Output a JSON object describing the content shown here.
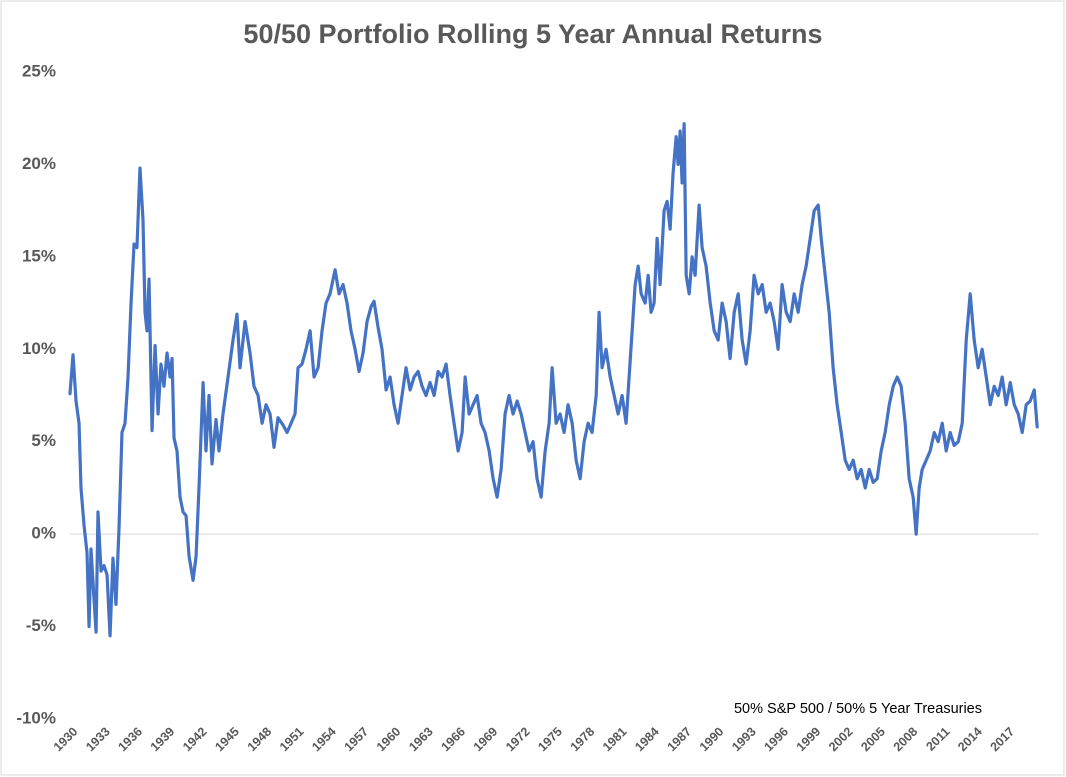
{
  "chart_data": {
    "type": "line",
    "title": "50/50 Portfolio Rolling 5 Year Annual Returns",
    "annotation": "50% S&P 500 / 50% 5 Year Treasuries",
    "color": "#4472c4",
    "xlim": [
      1930,
      2020
    ],
    "xticks": [
      1930,
      1933,
      1936,
      1939,
      1942,
      1945,
      1948,
      1951,
      1954,
      1957,
      1960,
      1963,
      1966,
      1969,
      1972,
      1975,
      1978,
      1981,
      1984,
      1987,
      1990,
      1993,
      1996,
      1999,
      2002,
      2005,
      2008,
      2011,
      2014,
      2017
    ],
    "ylim": [
      -10,
      25
    ],
    "yticks": [
      {
        "value": -10,
        "label": "-10%"
      },
      {
        "value": -5,
        "label": "-5%"
      },
      {
        "value": 0,
        "label": "0%"
      },
      {
        "value": 5,
        "label": "5%"
      },
      {
        "value": 10,
        "label": "10%"
      },
      {
        "value": 15,
        "label": "15%"
      },
      {
        "value": 20,
        "label": "20%"
      },
      {
        "value": 25,
        "label": "25%"
      }
    ],
    "zero_line": true,
    "x": [
      1930.0,
      1930.28,
      1930.56,
      1930.84,
      1931.02,
      1931.3,
      1931.58,
      1931.77,
      1931.95,
      1932.23,
      1932.42,
      1932.6,
      1932.88,
      1933.16,
      1933.44,
      1933.72,
      1933.99,
      1934.27,
      1934.55,
      1934.83,
      1935.11,
      1935.39,
      1935.67,
      1935.95,
      1936.22,
      1936.5,
      1936.78,
      1936.97,
      1937.15,
      1937.34,
      1937.62,
      1937.9,
      1938.18,
      1938.45,
      1938.73,
      1939.01,
      1939.29,
      1939.48,
      1939.66,
      1939.94,
      1940.22,
      1940.5,
      1940.78,
      1941.06,
      1941.43,
      1941.71,
      1941.98,
      1942.36,
      1942.63,
      1942.91,
      1943.19,
      1943.56,
      1943.84,
      1944.21,
      1944.68,
      1945.14,
      1945.51,
      1945.79,
      1946.26,
      1946.72,
      1947.09,
      1947.47,
      1947.84,
      1948.21,
      1948.58,
      1948.95,
      1949.32,
      1949.79,
      1950.16,
      1950.53,
      1950.9,
      1951.18,
      1951.55,
      1951.92,
      1952.3,
      1952.67,
      1953.04,
      1953.41,
      1953.78,
      1954.15,
      1954.62,
      1954.99,
      1955.36,
      1955.73,
      1956.1,
      1956.48,
      1956.85,
      1957.22,
      1957.59,
      1957.96,
      1958.24,
      1958.61,
      1958.98,
      1959.36,
      1959.73,
      1960.1,
      1960.47,
      1960.84,
      1961.21,
      1961.59,
      1961.96,
      1962.33,
      1962.7,
      1963.07,
      1963.44,
      1963.82,
      1964.19,
      1964.56,
      1964.93,
      1965.3,
      1965.67,
      1966.05,
      1966.42,
      1966.7,
      1967.07,
      1967.44,
      1967.81,
      1968.18,
      1968.55,
      1968.93,
      1969.3,
      1969.67,
      1970.04,
      1970.41,
      1970.78,
      1971.15,
      1971.53,
      1971.9,
      1972.27,
      1972.64,
      1973.01,
      1973.38,
      1973.76,
      1974.13,
      1974.5,
      1974.78,
      1975.15,
      1975.52,
      1975.89,
      1976.26,
      1976.64,
      1977.01,
      1977.38,
      1977.75,
      1978.12,
      1978.49,
      1978.87,
      1979.14,
      1979.42,
      1979.79,
      1980.17,
      1980.54,
      1980.91,
      1981.28,
      1981.65,
      1981.93,
      1982.21,
      1982.49,
      1982.77,
      1983.05,
      1983.42,
      1983.7,
      1983.97,
      1984.25,
      1984.53,
      1984.81,
      1985.18,
      1985.46,
      1985.74,
      1986.01,
      1986.3,
      1986.48,
      1986.67,
      1986.85,
      1987.04,
      1987.23,
      1987.51,
      1987.78,
      1988.06,
      1988.43,
      1988.71,
      1989.08,
      1989.46,
      1989.83,
      1990.2,
      1990.57,
      1990.94,
      1991.31,
      1991.69,
      1992.06,
      1992.43,
      1992.8,
      1993.17,
      1993.54,
      1993.92,
      1994.29,
      1994.66,
      1995.03,
      1995.4,
      1995.77,
      1996.14,
      1996.52,
      1996.89,
      1997.26,
      1997.63,
      1998.0,
      1998.37,
      1998.75,
      1999.12,
      1999.49,
      1999.77,
      2000.14,
      2000.51,
      2000.88,
      2001.25,
      2001.63,
      2002.0,
      2002.37,
      2002.74,
      2003.11,
      2003.48,
      2003.86,
      2004.23,
      2004.6,
      2004.97,
      2005.34,
      2005.71,
      2006.09,
      2006.46,
      2006.83,
      2007.2,
      2007.57,
      2007.94,
      2008.31,
      2008.59,
      2008.87,
      2009.15,
      2009.52,
      2009.89,
      2010.27,
      2010.64,
      2011.01,
      2011.38,
      2011.75,
      2012.12,
      2012.5,
      2012.87,
      2013.24,
      2013.61,
      2013.98,
      2014.35,
      2014.72,
      2015.1,
      2015.47,
      2015.84,
      2016.21,
      2016.58,
      2016.95,
      2017.33,
      2017.7,
      2018.07,
      2018.44,
      2018.81,
      2019.18,
      2019.56,
      2019.83
    ],
    "values": [
      7.6,
      9.7,
      7.2,
      6,
      2.5,
      0.5,
      -1,
      -5,
      -0.8,
      -3.5,
      -5.3,
      1.2,
      -2.0,
      -1.7,
      -2.2,
      -5.5,
      -1.3,
      -3.8,
      0.3,
      5.5,
      6,
      8.5,
      12.5,
      15.7,
      15.5,
      19.8,
      17,
      12,
      11,
      13.8,
      5.6,
      10.2,
      6.5,
      9.2,
      8.0,
      9.8,
      8.5,
      9.5,
      5.2,
      4.5,
      2.0,
      1.2,
      1.0,
      -1.2,
      -2.5,
      -1.2,
      2.5,
      8.2,
      4.5,
      7.5,
      3.8,
      6.2,
      4.5,
      6.5,
      8.5,
      10.5,
      11.9,
      9.0,
      11.5,
      9.8,
      8.0,
      7.5,
      6.0,
      7.0,
      6.5,
      4.7,
      6.3,
      5.9,
      5.5,
      6.0,
      6.5,
      9.0,
      9.2,
      10.0,
      11.0,
      8.5,
      9.0,
      11.0,
      12.5,
      13.0,
      14.3,
      13.0,
      13.5,
      12.5,
      11.0,
      10.0,
      8.8,
      9.8,
      11.5,
      12.3,
      12.6,
      11.2,
      10.0,
      7.8,
      8.5,
      7.0,
      6.0,
      7.5,
      9.0,
      7.8,
      8.5,
      8.8,
      8.0,
      7.5,
      8.2,
      7.5,
      8.8,
      8.5,
      9.2,
      7.5,
      6.0,
      4.5,
      5.5,
      8.5,
      6.5,
      7.0,
      7.5,
      6.0,
      5.5,
      4.5,
      3.0,
      2.0,
      3.5,
      6.5,
      7.5,
      6.5,
      7.2,
      6.5,
      5.5,
      4.5,
      5.0,
      3.0,
      2.0,
      4.5,
      6.0,
      9.0,
      6.0,
      6.5,
      5.5,
      7.0,
      6.0,
      4.0,
      3.0,
      5.0,
      6.0,
      5.5,
      7.5,
      12.0,
      9.0,
      10.0,
      8.5,
      7.5,
      6.5,
      7.5,
      6.0,
      8.5,
      11.0,
      13.5,
      14.5,
      13.0,
      12.5,
      14.0,
      12.0,
      12.5,
      16.0,
      13.5,
      17.5,
      18.0,
      16.5,
      19.5,
      21.5,
      20.0,
      21.8,
      19.0,
      22.2,
      14.0,
      13.0,
      15.0,
      14.0,
      17.8,
      15.5,
      14.5,
      12.5,
      11.0,
      10.5,
      12.5,
      11.5,
      9.5,
      12.0,
      13.0,
      10.5,
      9.2,
      11.0,
      14.0,
      13.0,
      13.5,
      12.0,
      12.5,
      11.5,
      10.0,
      13.5,
      12.0,
      11.5,
      13.0,
      12.0,
      13.5,
      14.5,
      16.0,
      17.5,
      17.8,
      16.0,
      14.0,
      12.0,
      9.0,
      7.0,
      5.5,
      4.0,
      3.5,
      4.0,
      3.0,
      3.5,
      2.5,
      3.5,
      2.8,
      3.0,
      4.5,
      5.5,
      7.0,
      8.0,
      8.5,
      8.0,
      6.0,
      3.0,
      2.0,
      0.0,
      2.5,
      3.5,
      4.0,
      4.5,
      5.5,
      5.0,
      6.0,
      4.5,
      5.5,
      4.8,
      5.0,
      6.0,
      10.5,
      13.0,
      10.5,
      9.0,
      10.0,
      8.5,
      7.0,
      8.0,
      7.5,
      8.5,
      7.0,
      8.2,
      7.0,
      6.5,
      5.5,
      7.0,
      7.2,
      7.8,
      5.8
    ]
  }
}
